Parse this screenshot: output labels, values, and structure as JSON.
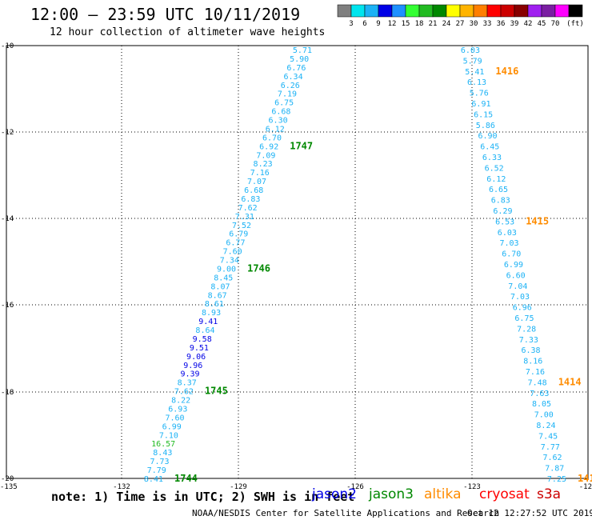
{
  "header": {
    "title": "12:00 – 23:59 UTC 10/11/2019",
    "subtitle": "12 hour collection of altimeter wave heights"
  },
  "colorbar": {
    "bins": [
      {
        "color": "#7f7f7f",
        "label": ""
      },
      {
        "color": "#00e5ee",
        "label": "3"
      },
      {
        "color": "#1cb2f5",
        "label": "6"
      },
      {
        "color": "#0000e6",
        "label": "9"
      },
      {
        "color": "#1e90ff",
        "label": "12"
      },
      {
        "color": "#33ff33",
        "label": "15"
      },
      {
        "color": "#22bb22",
        "label": "18"
      },
      {
        "color": "#008800",
        "label": "21"
      },
      {
        "color": "#ffff00",
        "label": "24"
      },
      {
        "color": "#ffb400",
        "label": "27"
      },
      {
        "color": "#ff7f00",
        "label": "30"
      },
      {
        "color": "#ff0000",
        "label": "33"
      },
      {
        "color": "#cc0000",
        "label": "36"
      },
      {
        "color": "#880000",
        "label": "39"
      },
      {
        "color": "#a020f0",
        "label": "42"
      },
      {
        "color": "#7a1fa2",
        "label": "45"
      },
      {
        "color": "#ff00ff",
        "label": "70"
      },
      {
        "color": "#000000",
        "label": "(ft)"
      }
    ]
  },
  "axes": {
    "lon_ticks": [
      "-135",
      "-132",
      "-129",
      "-126",
      "-123",
      "-12"
    ],
    "lat_ticks": [
      "-10",
      "-12",
      "-14",
      "-16",
      "-18",
      "-20"
    ]
  },
  "tracks": [
    {
      "name": "jason3-west",
      "color": "#1cb2f5",
      "values": [
        "5.71",
        "5.90",
        "6.76",
        "6.34",
        "6.26",
        "7.19",
        "6.75",
        "6.68",
        "6.30",
        "6.12",
        "6.70",
        "6.92",
        "7.09",
        "8.23",
        "7.16",
        "7.07",
        "6.68",
        "6.83",
        "7.62",
        "7.31",
        "7.52",
        "6.79",
        "6.77",
        "7.60",
        "7.34",
        "9.00",
        "8.45",
        "8.07",
        "8.67",
        "8.61",
        "8.93",
        "9.41",
        "8.64",
        "9.58",
        "9.51",
        "9.06",
        "9.96",
        "9.39",
        "8.37",
        "7.62",
        "8.22",
        "6.93",
        "7.60",
        "6.99",
        "7.10",
        "16.57",
        "8.43",
        "7.73",
        "7.79",
        "8.41"
      ],
      "high_values": [
        "9.41",
        "9.58",
        "9.51",
        "9.06",
        "9.96",
        "9.39"
      ],
      "green_values": [
        "16.57"
      ],
      "times": [
        {
          "label": "1747",
          "lat_index": 11
        },
        {
          "label": "1746",
          "lat_index": 25
        },
        {
          "label": "1745",
          "lat_index": 39
        },
        {
          "label": "1744",
          "lat_index": 49
        }
      ],
      "time_color": "#008800"
    },
    {
      "name": "altika-east",
      "color": "#1cb2f5",
      "values": [
        "6.03",
        "5.79",
        "5.41",
        "6.13",
        "5.76",
        "6.91",
        "6.15",
        "5.86",
        "6.90",
        "6.45",
        "6.33",
        "6.52",
        "6.12",
        "6.65",
        "6.83",
        "6.29",
        "6.53",
        "6.03",
        "7.03",
        "6.70",
        "6.99",
        "6.60",
        "7.04",
        "7.03",
        "6.96",
        "6.75",
        "7.28",
        "7.33",
        "6.38",
        "8.16",
        "7.16",
        "7.48",
        "7.63",
        "8.05",
        "7.00",
        "8.24",
        "7.45",
        "7.77",
        "7.62",
        "7.87",
        "7.25"
      ],
      "times": [
        {
          "label": "1416",
          "lat_index": 2
        },
        {
          "label": "1415",
          "lat_index": 16
        },
        {
          "label": "1414",
          "lat_index": 31
        },
        {
          "label": "141",
          "lat_index": 40
        }
      ],
      "time_color": "#ff8c00"
    }
  ],
  "footer": {
    "note": "note: 1) Time is in UTC; 2) SWH is in feet",
    "satellites": [
      {
        "name": "jason2",
        "color": "#0000e6"
      },
      {
        "name": "jason3",
        "color": "#008800"
      },
      {
        "name": "altika",
        "color": "#ff8c00"
      },
      {
        "name": "cryosat",
        "color": "#ff0000"
      },
      {
        "name": "s3a",
        "color": "#cc0000"
      }
    ],
    "credit": "NOAA/NESDIS Center for Satellite Applications and Research",
    "timestamp": "Oct 12 12:27:52 UTC 2019"
  }
}
